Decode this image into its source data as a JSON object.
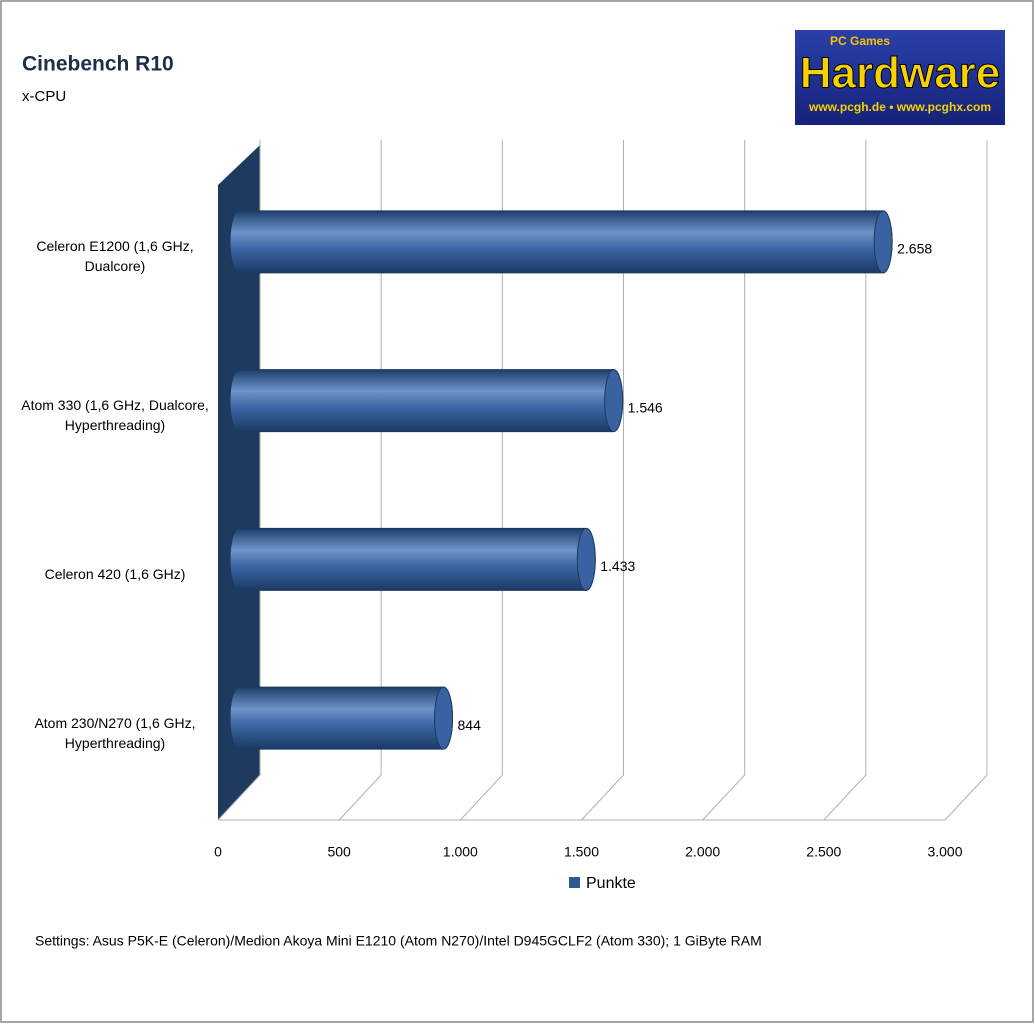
{
  "chart_data": {
    "type": "bar",
    "orientation": "horizontal",
    "title": "Cinebench R10",
    "subtitle": "x-CPU",
    "categories": [
      "Celeron E1200 (1,6 GHz, Dualcore)",
      "Atom 330 (1,6 GHz, Dualcore, Hyperthreading)",
      "Celeron 420 (1,6 GHz)",
      "Atom 230/N270 (1,6 GHz, Hyperthreading)"
    ],
    "series": [
      {
        "name": "Punkte",
        "color": "#2e5a94",
        "values": [
          2658,
          1546,
          1433,
          844
        ],
        "value_labels": [
          "2.658",
          "1.546",
          "1.433",
          "844"
        ]
      }
    ],
    "xlim": [
      0,
      3000
    ],
    "xticks": [
      0,
      500,
      {
        "value": 1000,
        "label": "1.000"
      },
      {
        "value": 1500,
        "label": "1.500"
      },
      {
        "value": 2000,
        "label": "2.000"
      },
      {
        "value": 2500,
        "label": "2.500"
      },
      {
        "value": 3000,
        "label": "3.000"
      }
    ],
    "grid": true,
    "legend": "bottom",
    "note": "Settings: Asus P5K-E (Celeron)/Medion Akoya Mini E1210 (Atom N270)/Intel D945GCLF2 (Atom 330); 1 GiByte RAM",
    "logo": {
      "brand": "PC Games",
      "name": "Hardware",
      "url": "www.pcgh.de • www.pcghx.com"
    }
  }
}
